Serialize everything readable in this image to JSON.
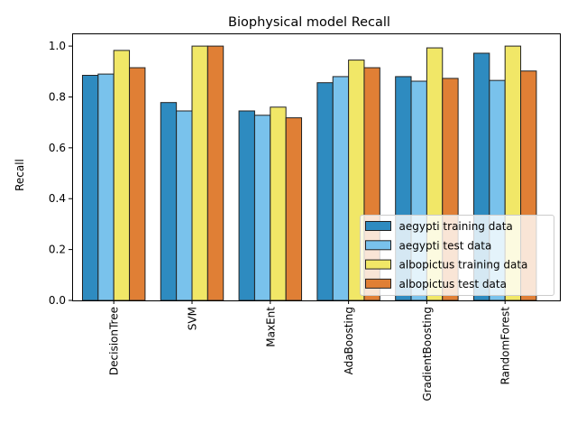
{
  "chart_data": {
    "type": "bar",
    "title": "Biophysical model Recall",
    "xlabel": "",
    "ylabel": "Recall",
    "ylim": [
      0,
      1.05
    ],
    "yticks": [
      0.0,
      0.2,
      0.4,
      0.6,
      0.8,
      1.0
    ],
    "ytick_labels": [
      "0.0",
      "0.2",
      "0.4",
      "0.6",
      "0.8",
      "1.0"
    ],
    "categories": [
      "DecisionTree",
      "SVM",
      "MaxEnt",
      "AdaBoosting",
      "GradientBoosting",
      "RandomForest"
    ],
    "series": [
      {
        "name": "aegypti training data",
        "color": "#2e8bc0",
        "values": [
          0.885,
          0.778,
          0.745,
          0.856,
          0.88,
          0.972
        ]
      },
      {
        "name": "aegypti test data",
        "color": "#79c2ec",
        "values": [
          0.89,
          0.745,
          0.728,
          0.88,
          0.862,
          0.865
        ]
      },
      {
        "name": "albopictus training data",
        "color": "#f1e767",
        "values": [
          0.983,
          1.0,
          0.76,
          0.945,
          0.993,
          1.0
        ]
      },
      {
        "name": "albopictus test data",
        "color": "#e07f35",
        "values": [
          0.915,
          1.0,
          0.718,
          0.915,
          0.873,
          0.902
        ]
      }
    ],
    "grid": false,
    "legend_position": "lower-right"
  }
}
